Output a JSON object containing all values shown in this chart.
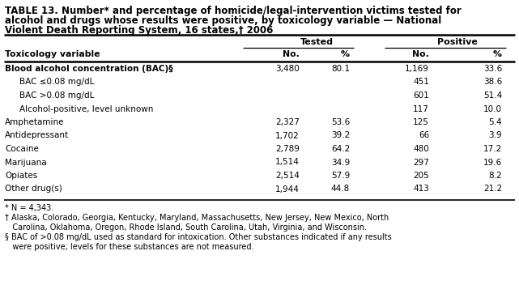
{
  "title_line1": "TABLE 13. Number* and percentage of homicide/legal-intervention victims tested for",
  "title_line2": "alcohol and drugs whose results were positive, by toxicology variable — National",
  "title_line3": "Violent Death Reporting System, 16 states,† 2006",
  "rows": [
    {
      "label": "Blood alcohol concentration (BAC)§",
      "indent": false,
      "bold": true,
      "t_no": "3,480",
      "t_pct": "80.1",
      "p_no": "1,169",
      "p_pct": "33.6"
    },
    {
      "label": "BAC ≤0.08 mg/dL",
      "indent": true,
      "bold": false,
      "t_no": "",
      "t_pct": "",
      "p_no": "451",
      "p_pct": "38.6"
    },
    {
      "label": "BAC >0.08 mg/dL",
      "indent": true,
      "bold": false,
      "t_no": "",
      "t_pct": "",
      "p_no": "601",
      "p_pct": "51.4"
    },
    {
      "label": "Alcohol-positive, level unknown",
      "indent": true,
      "bold": false,
      "t_no": "",
      "t_pct": "",
      "p_no": "117",
      "p_pct": "10.0"
    },
    {
      "label": "Amphetamine",
      "indent": false,
      "bold": false,
      "t_no": "2,327",
      "t_pct": "53.6",
      "p_no": "125",
      "p_pct": "5.4"
    },
    {
      "label": "Antidepressant",
      "indent": false,
      "bold": false,
      "t_no": "1,702",
      "t_pct": "39.2",
      "p_no": "66",
      "p_pct": "3.9"
    },
    {
      "label": "Cocaine",
      "indent": false,
      "bold": false,
      "t_no": "2,789",
      "t_pct": "64.2",
      "p_no": "480",
      "p_pct": "17.2"
    },
    {
      "label": "Marijuana",
      "indent": false,
      "bold": false,
      "t_no": "1,514",
      "t_pct": "34.9",
      "p_no": "297",
      "p_pct": "19.6"
    },
    {
      "label": "Opiates",
      "indent": false,
      "bold": false,
      "t_no": "2,514",
      "t_pct": "57.9",
      "p_no": "205",
      "p_pct": "8.2"
    },
    {
      "label": "Other drug(s)",
      "indent": false,
      "bold": false,
      "t_no": "1,944",
      "t_pct": "44.8",
      "p_no": "413",
      "p_pct": "21.2"
    }
  ],
  "footnote1": "* N = 4,343.",
  "footnote2": "† Alaska, Colorado, Georgia, Kentucky, Maryland, Massachusetts, New Jersey, New Mexico, North Carolina, Oklahoma, Oregon, Rhode Island, South Carolina, Utah, Virginia, and Wisconsin.",
  "footnote2_indent": "  Carolina, Oklahoma, Oregon, Rhode Island, South Carolina, Utah, Virginia, and Wisconsin.",
  "footnote3": "§ BAC of >0.08 mg/dL used as standard for intoxication. Other substances indicated if any results were positive; levels for these substances are not measured.",
  "bg_color": "#ffffff",
  "text_color": "#000000",
  "border_color": "#000000"
}
